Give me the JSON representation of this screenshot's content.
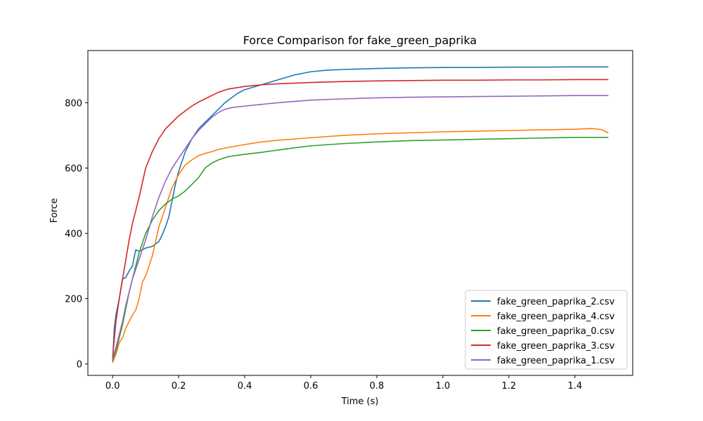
{
  "chart_data": {
    "type": "line",
    "title": "Force Comparison for fake_green_paprika",
    "xlabel": "Time (s)",
    "ylabel": "Force",
    "xlim": [
      -0.075,
      1.575
    ],
    "ylim": [
      -35,
      960
    ],
    "xticks": [
      0.0,
      0.2,
      0.4,
      0.6,
      0.8,
      1.0,
      1.2,
      1.4
    ],
    "xtick_labels": [
      "0.0",
      "0.2",
      "0.4",
      "0.6",
      "0.8",
      "1.0",
      "1.2",
      "1.4"
    ],
    "yticks": [
      0,
      200,
      400,
      600,
      800
    ],
    "ytick_labels": [
      "0",
      "200",
      "400",
      "600",
      "800"
    ],
    "grid": false,
    "legend_position": "lower-right",
    "series": [
      {
        "name": "fake_green_paprika_2.csv",
        "color": "#1f77b4",
        "x": [
          0.0,
          0.005,
          0.01,
          0.02,
          0.03,
          0.04,
          0.05,
          0.06,
          0.07,
          0.08,
          0.1,
          0.12,
          0.14,
          0.15,
          0.16,
          0.17,
          0.18,
          0.19,
          0.2,
          0.22,
          0.24,
          0.26,
          0.28,
          0.3,
          0.32,
          0.34,
          0.36,
          0.38,
          0.4,
          0.45,
          0.5,
          0.55,
          0.6,
          0.65,
          0.7,
          0.8,
          0.9,
          1.0,
          1.1,
          1.2,
          1.3,
          1.4,
          1.5
        ],
        "y": [
          10,
          110,
          150,
          200,
          260,
          265,
          285,
          300,
          350,
          345,
          355,
          360,
          375,
          395,
          420,
          450,
          500,
          550,
          590,
          650,
          690,
          720,
          740,
          760,
          780,
          800,
          815,
          830,
          840,
          855,
          870,
          885,
          895,
          900,
          902,
          905,
          907,
          908,
          908,
          909,
          909,
          910,
          910
        ]
      },
      {
        "name": "fake_green_paprika_4.csv",
        "color": "#ff7f0e",
        "x": [
          0.0,
          0.01,
          0.02,
          0.03,
          0.04,
          0.05,
          0.06,
          0.07,
          0.08,
          0.09,
          0.1,
          0.11,
          0.12,
          0.14,
          0.16,
          0.18,
          0.2,
          0.22,
          0.24,
          0.26,
          0.28,
          0.3,
          0.32,
          0.35,
          0.4,
          0.45,
          0.5,
          0.6,
          0.7,
          0.8,
          0.9,
          1.0,
          1.1,
          1.2,
          1.3,
          1.4,
          1.45,
          1.48,
          1.5
        ],
        "y": [
          5,
          30,
          65,
          80,
          110,
          130,
          150,
          165,
          200,
          250,
          270,
          300,
          330,
          420,
          480,
          540,
          580,
          610,
          625,
          638,
          645,
          650,
          657,
          663,
          672,
          680,
          685,
          693,
          700,
          705,
          708,
          711,
          713,
          715,
          717,
          719,
          721,
          718,
          708
        ]
      },
      {
        "name": "fake_green_paprika_0.csv",
        "color": "#2ca02c",
        "x": [
          0.0,
          0.01,
          0.02,
          0.03,
          0.04,
          0.05,
          0.06,
          0.07,
          0.08,
          0.1,
          0.12,
          0.14,
          0.16,
          0.18,
          0.2,
          0.22,
          0.24,
          0.26,
          0.28,
          0.3,
          0.32,
          0.35,
          0.4,
          0.45,
          0.5,
          0.55,
          0.6,
          0.7,
          0.8,
          0.9,
          1.0,
          1.1,
          1.2,
          1.3,
          1.4,
          1.5
        ],
        "y": [
          10,
          40,
          80,
          120,
          170,
          220,
          260,
          300,
          340,
          400,
          440,
          470,
          490,
          505,
          515,
          530,
          550,
          570,
          600,
          615,
          625,
          635,
          642,
          648,
          655,
          662,
          668,
          675,
          680,
          684,
          686,
          688,
          690,
          692,
          694,
          694
        ]
      },
      {
        "name": "fake_green_paprika_3.csv",
        "color": "#d62728",
        "x": [
          0.0,
          0.01,
          0.02,
          0.03,
          0.04,
          0.05,
          0.06,
          0.07,
          0.08,
          0.1,
          0.12,
          0.14,
          0.16,
          0.18,
          0.2,
          0.22,
          0.24,
          0.26,
          0.28,
          0.3,
          0.32,
          0.35,
          0.4,
          0.45,
          0.5,
          0.6,
          0.7,
          0.8,
          0.9,
          1.0,
          1.1,
          1.2,
          1.3,
          1.4,
          1.5
        ],
        "y": [
          20,
          130,
          200,
          260,
          320,
          380,
          430,
          470,
          510,
          600,
          650,
          690,
          720,
          740,
          760,
          775,
          790,
          802,
          812,
          822,
          832,
          842,
          850,
          855,
          858,
          862,
          865,
          867,
          868,
          869,
          869,
          870,
          870,
          871,
          871
        ]
      },
      {
        "name": "fake_green_paprika_1.csv",
        "color": "#9467bd",
        "x": [
          0.0,
          0.01,
          0.02,
          0.03,
          0.04,
          0.05,
          0.06,
          0.07,
          0.08,
          0.1,
          0.12,
          0.14,
          0.16,
          0.18,
          0.2,
          0.22,
          0.24,
          0.26,
          0.28,
          0.3,
          0.32,
          0.34,
          0.36,
          0.4,
          0.45,
          0.5,
          0.6,
          0.7,
          0.8,
          0.9,
          1.0,
          1.1,
          1.2,
          1.3,
          1.4,
          1.5
        ],
        "y": [
          15,
          50,
          90,
          130,
          180,
          220,
          260,
          290,
          320,
          380,
          450,
          510,
          560,
          600,
          630,
          660,
          690,
          715,
          735,
          755,
          770,
          780,
          785,
          790,
          795,
          800,
          808,
          812,
          815,
          817,
          818,
          819,
          820,
          821,
          822,
          822
        ]
      }
    ]
  }
}
